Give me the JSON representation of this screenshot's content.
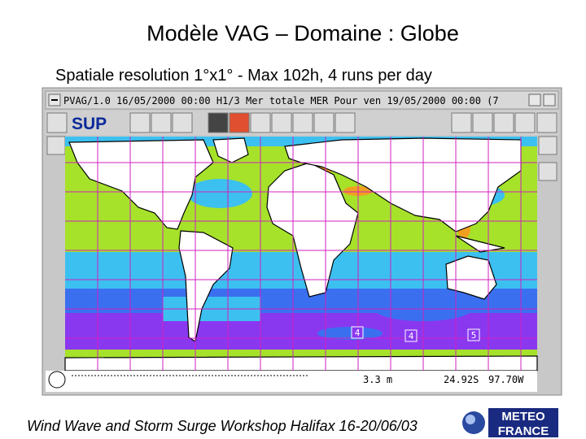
{
  "header": {
    "title": "Modèle VAG – Domaine : Globe",
    "subtitle": "Spatiale resolution 1°x1° - Max 102h, 4 runs per day"
  },
  "window": {
    "title_bar": "PVAG/1.0 16/05/2000 00:00 H1/3 Mer totale MER Pour ven 19/05/2000 00:00 (7",
    "toolbar_label": "SUP",
    "map_labels": [
      "4",
      "4",
      "5"
    ],
    "status": {
      "value": "3.3 m",
      "latitude": "24.92S",
      "longitude": "97.70W"
    }
  },
  "footer": {
    "text": "Wind Wave and Storm Surge Workshop Halifax 16-20/06/03",
    "logo": [
      "METEO",
      "FRANCE"
    ]
  }
}
